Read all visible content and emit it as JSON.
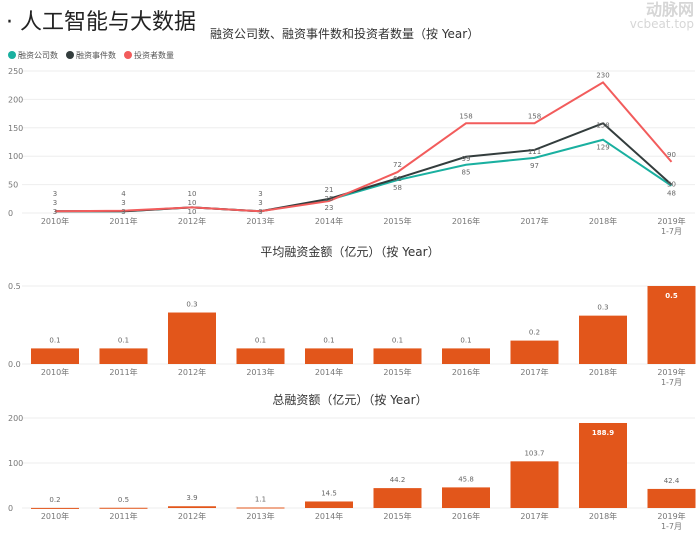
{
  "page_title": "· 人工智能与大数据",
  "watermark": {
    "cn": "动脉网",
    "en": "vcbeat.top"
  },
  "chart_data": [
    {
      "type": "line",
      "title": "融资公司数、融资事件数和投资者数量（按 Year）",
      "categories": [
        "2010年",
        "2011年",
        "2012年",
        "2013年",
        "2014年",
        "2015年",
        "2016年",
        "2017年",
        "2018年",
        "2019年\n1-7月"
      ],
      "ylim": [
        0,
        250
      ],
      "yticks": [
        0,
        50,
        100,
        150,
        200,
        250
      ],
      "grid": true,
      "legend": "top-left",
      "series": [
        {
          "name": "融资公司数",
          "color": "#1ab0a0",
          "values": [
            3,
            3,
            10,
            3,
            23,
            58,
            85,
            97,
            129,
            48
          ]
        },
        {
          "name": "融资事件数",
          "color": "#333d3d",
          "values": [
            3,
            3,
            10,
            3,
            25,
            61,
            99,
            111,
            158,
            50
          ]
        },
        {
          "name": "投资者数量",
          "color": "#f25c5c",
          "values": [
            3,
            4,
            10,
            3,
            21,
            72,
            158,
            158,
            230,
            90
          ]
        }
      ]
    },
    {
      "type": "bar",
      "title": "平均融资金额（亿元）（按 Year）",
      "categories": [
        "2010年",
        "2011年",
        "2012年",
        "2013年",
        "2014年",
        "2015年",
        "2016年",
        "2017年",
        "2018年",
        "2019年\n1-7月"
      ],
      "values": [
        0.1,
        0.1,
        0.3,
        0.1,
        0.1,
        0.1,
        0.1,
        0.2,
        0.3,
        0.5
      ],
      "bar_values": [
        0.1,
        0.1,
        0.33,
        0.1,
        0.1,
        0.1,
        0.1,
        0.15,
        0.31,
        0.5
      ],
      "ylim": [
        0,
        0.5
      ],
      "yticks": [
        "0.0",
        "0.5"
      ],
      "color": "#e2561b",
      "grid": true
    },
    {
      "type": "bar",
      "title": "总融资额（亿元）（按 Year）",
      "categories": [
        "2010年",
        "2011年",
        "2012年",
        "2013年",
        "2014年",
        "2015年",
        "2016年",
        "2017年",
        "2018年",
        "2019年\n1-7月"
      ],
      "values": [
        0.2,
        0.5,
        3.9,
        1.1,
        14.5,
        44.2,
        45.8,
        103.7,
        188.9,
        42.4
      ],
      "ylim": [
        0,
        200
      ],
      "yticks": [
        "0",
        "100",
        "200"
      ],
      "color": "#e2561b",
      "grid": true
    }
  ]
}
